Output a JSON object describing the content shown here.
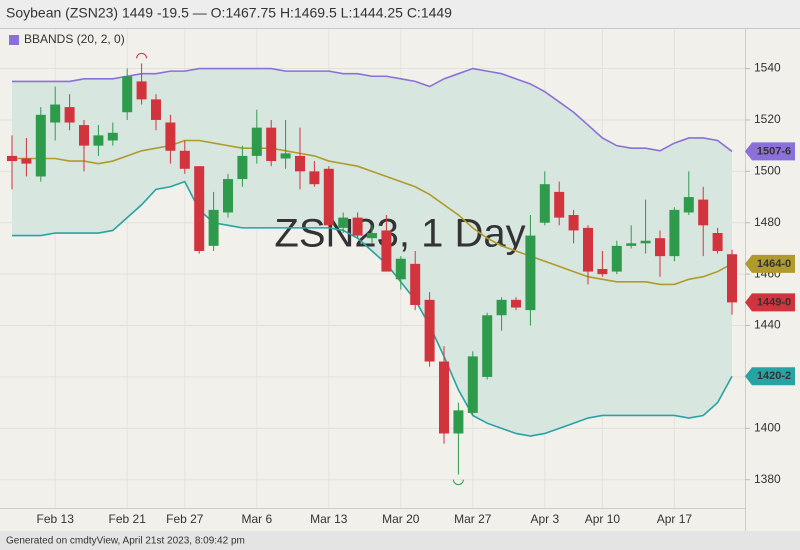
{
  "chart_data": {
    "type": "candlestick",
    "title": "Soybean (ZSN23) 1449 -19.5 — O:1467.75 H:1469.5 L:1444.25 C:1449",
    "watermark": "ZSN23, 1 Day",
    "footer": "Generated on cmdtyView, April 21st 2023, 8:09:42 pm",
    "categories": [
      null,
      null,
      null,
      "Feb 13",
      null,
      null,
      null,
      null,
      "Feb 21",
      null,
      null,
      null,
      "Feb 27",
      null,
      null,
      null,
      null,
      "Mar 6",
      null,
      null,
      null,
      null,
      "Mar 13",
      null,
      null,
      null,
      null,
      "Mar 20",
      null,
      null,
      null,
      null,
      "Mar 27",
      null,
      null,
      null,
      null,
      "Apr 3",
      null,
      null,
      null,
      "Apr 10",
      null,
      null,
      null,
      null,
      "Apr 17",
      null,
      null,
      null,
      null
    ],
    "open": [
      1506,
      1505,
      1498,
      1519,
      1525,
      1518,
      1510,
      1512,
      1523,
      1535,
      1528,
      1519,
      1508,
      1502,
      1471,
      1484,
      1497,
      1506,
      1517,
      1505,
      1506,
      1500,
      1501,
      1478,
      1482,
      1474,
      1477,
      1458,
      1464,
      1450,
      1426,
      1398,
      1406,
      1420,
      1444,
      1450,
      1446,
      1480,
      1492,
      1483,
      1478,
      1462,
      1461,
      1471,
      1472,
      1474,
      1467,
      1484,
      1489,
      1476,
      1467.75
    ],
    "high": [
      1514,
      1513,
      1525,
      1533,
      1530,
      1520,
      1518,
      1519,
      1540,
      1542,
      1530,
      1522,
      1512,
      1502,
      1492,
      1499,
      1510,
      1524,
      1520,
      1520,
      1517,
      1504,
      1502,
      1484,
      1484,
      1479,
      1483,
      1467,
      1469,
      1453,
      1432,
      1410,
      1430,
      1445,
      1451,
      1451,
      1483,
      1500,
      1496,
      1485,
      1479,
      1469,
      1473,
      1479,
      1489,
      1477,
      1486,
      1500,
      1494,
      1478,
      1469.5
    ],
    "low": [
      1493,
      1498,
      1496,
      1512,
      1516,
      1500,
      1506,
      1510,
      1520,
      1526,
      1516,
      1503,
      1499,
      1468,
      1469,
      1482,
      1494,
      1503,
      1502,
      1501,
      1493,
      1494,
      1478,
      1476,
      1474,
      1472,
      1461,
      1454,
      1446,
      1424,
      1394,
      1382,
      1405,
      1419,
      1438,
      1446,
      1440,
      1479,
      1479,
      1472,
      1456,
      1459,
      1460,
      1470,
      1468,
      1459,
      1465,
      1483,
      1467,
      1468,
      1444.25
    ],
    "close": [
      1504,
      1503,
      1522,
      1526,
      1519,
      1510,
      1514,
      1515,
      1537,
      1528,
      1520,
      1508,
      1501,
      1469,
      1485,
      1497,
      1506,
      1517,
      1504,
      1507,
      1500,
      1495,
      1479,
      1482,
      1475,
      1476,
      1461,
      1466,
      1448,
      1426,
      1398,
      1407,
      1428,
      1444,
      1450,
      1447,
      1475,
      1495,
      1482,
      1477,
      1461,
      1460,
      1471,
      1472,
      1473,
      1467,
      1485,
      1490,
      1479,
      1469,
      1449
    ],
    "up_color": "#2e9b4c",
    "down_color": "#d1343d",
    "bands": {
      "name": "BBANDS (20, 2, 0)",
      "legend_color": "#8a70d8",
      "fill": "#d8e6e0",
      "upper": {
        "color": "#8a70d8",
        "values": [
          1535,
          1535,
          1535,
          1535,
          1535,
          1536,
          1536,
          1536,
          1537,
          1538,
          1538,
          1539,
          1539,
          1540,
          1540,
          1540,
          1540,
          1540,
          1540,
          1539,
          1539,
          1539,
          1539,
          1538,
          1538,
          1537,
          1537,
          1536,
          1535,
          1533,
          1536,
          1538,
          1540,
          1539,
          1538,
          1536,
          1534,
          1531,
          1527,
          1523,
          1518,
          1513,
          1510,
          1509,
          1509,
          1508,
          1511,
          1513,
          1513,
          1512,
          1507.75
        ]
      },
      "middle": {
        "color": "#b09a2c",
        "values": [
          1505,
          1505,
          1505,
          1505,
          1504,
          1504,
          1503,
          1504,
          1506,
          1508,
          1509,
          1510,
          1512,
          1512,
          1511,
          1510,
          1509,
          1509,
          1509,
          1508,
          1507,
          1506,
          1504,
          1503,
          1502,
          1500,
          1498,
          1496,
          1494,
          1491,
          1487,
          1483,
          1478,
          1474,
          1471,
          1469,
          1467,
          1465,
          1463,
          1461,
          1459,
          1458,
          1457,
          1457,
          1457,
          1456,
          1456,
          1458,
          1459,
          1461,
          1464
        ]
      },
      "lower": {
        "color": "#27a3a3",
        "values": [
          1475,
          1475,
          1475,
          1476,
          1476,
          1476,
          1476,
          1477,
          1482,
          1487,
          1493,
          1494,
          1496,
          1485,
          1480,
          1479,
          1478,
          1478,
          1478,
          1478,
          1478,
          1478,
          1478,
          1477,
          1474,
          1469,
          1464,
          1457,
          1450,
          1440,
          1428,
          1415,
          1405,
          1402,
          1400,
          1398,
          1397,
          1398,
          1400,
          1402,
          1404,
          1405,
          1405,
          1405,
          1405,
          1405,
          1405,
          1404,
          1405,
          1410,
          1420.25
        ]
      }
    },
    "price_tags": [
      {
        "value": 1507.75,
        "label": "1507-6",
        "color": "#8a70d8"
      },
      {
        "value": 1464,
        "label": "1464-0",
        "color": "#b09a2c"
      },
      {
        "value": 1449,
        "label": "1449-0",
        "color": "#d1343d"
      },
      {
        "value": 1420.25,
        "label": "1420-2",
        "color": "#27a3a3"
      }
    ],
    "ylim": [
      1369,
      1555
    ],
    "yticks": [
      1380,
      1400,
      1420,
      1440,
      1460,
      1480,
      1500,
      1520,
      1540
    ],
    "grid": true
  }
}
